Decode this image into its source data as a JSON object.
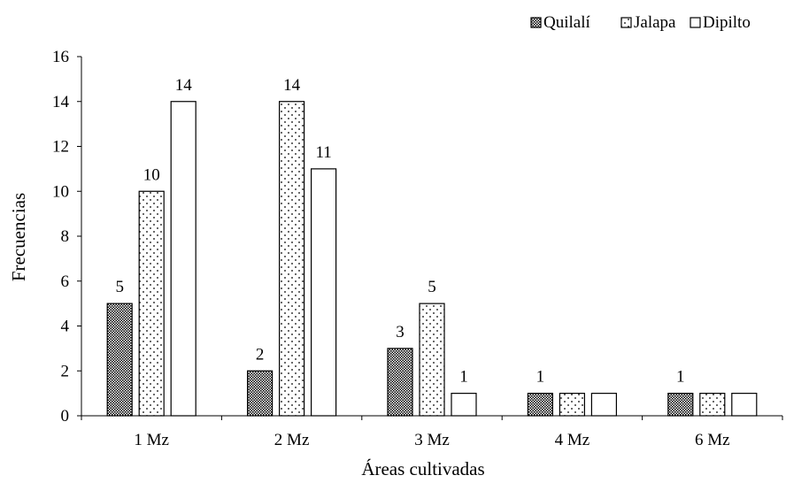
{
  "chart_data": {
    "type": "bar",
    "xlabel": "Áreas cultivadas",
    "ylabel": "Frecuencias",
    "ylim": [
      0,
      16
    ],
    "yticks": [
      0,
      2,
      4,
      6,
      8,
      10,
      12,
      14,
      16
    ],
    "categories": [
      "1 Mz",
      "2 Mz",
      "3 Mz",
      "4 Mz",
      "6 Mz"
    ],
    "series": [
      {
        "name": "Quilalí",
        "pattern": "crosshatch",
        "values": [
          5,
          2,
          3,
          1,
          1
        ],
        "labels": [
          "5",
          "2",
          "3",
          "1",
          "1"
        ]
      },
      {
        "name": "Jalapa",
        "pattern": "dots",
        "values": [
          10,
          14,
          5,
          1,
          1
        ],
        "labels": [
          "10",
          "14",
          "5",
          "",
          ""
        ]
      },
      {
        "name": "Dipilto",
        "pattern": "plain",
        "values": [
          14,
          11,
          1,
          1,
          1
        ],
        "labels": [
          "14",
          "11",
          "1",
          "",
          ""
        ]
      }
    ],
    "legend_position": "top-right",
    "grid": false,
    "colors": {
      "bar_stroke": "#000000",
      "bar_fill": "#ffffff",
      "text": "#000000"
    }
  }
}
